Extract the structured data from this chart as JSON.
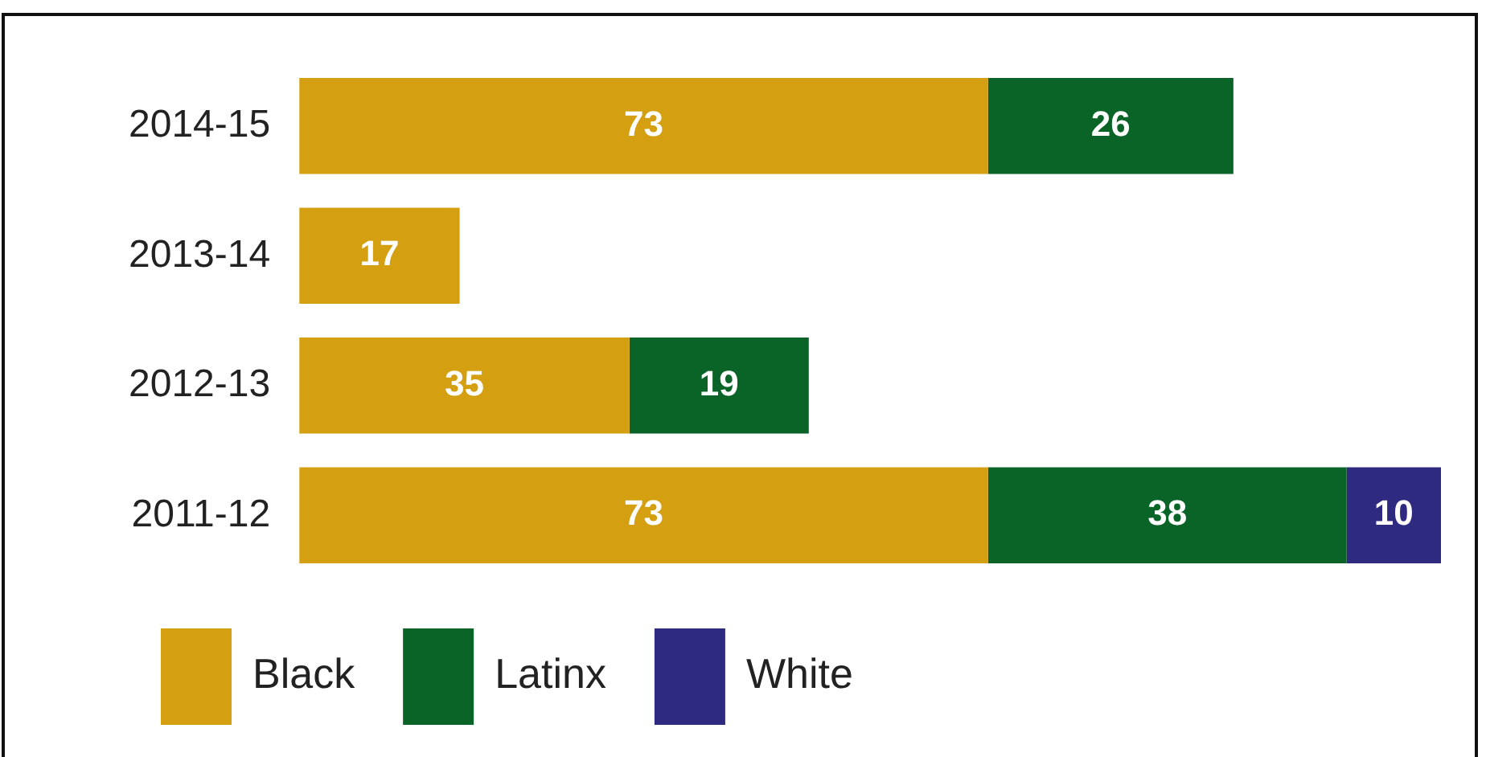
{
  "chart_data": {
    "type": "bar",
    "orientation": "horizontal",
    "stacked": true,
    "categories": [
      "2014-15",
      "2013-14",
      "2012-13",
      "2011-12"
    ],
    "series": [
      {
        "name": "Black",
        "color": "#d4a012",
        "values": [
          73,
          17,
          35,
          73
        ]
      },
      {
        "name": "Latinx",
        "color": "#0a6428",
        "values": [
          26,
          null,
          19,
          38
        ]
      },
      {
        "name": "White",
        "color": "#2e2a80",
        "values": [
          null,
          null,
          null,
          10
        ]
      }
    ],
    "data_labels": true,
    "legend": "bottom left"
  }
}
